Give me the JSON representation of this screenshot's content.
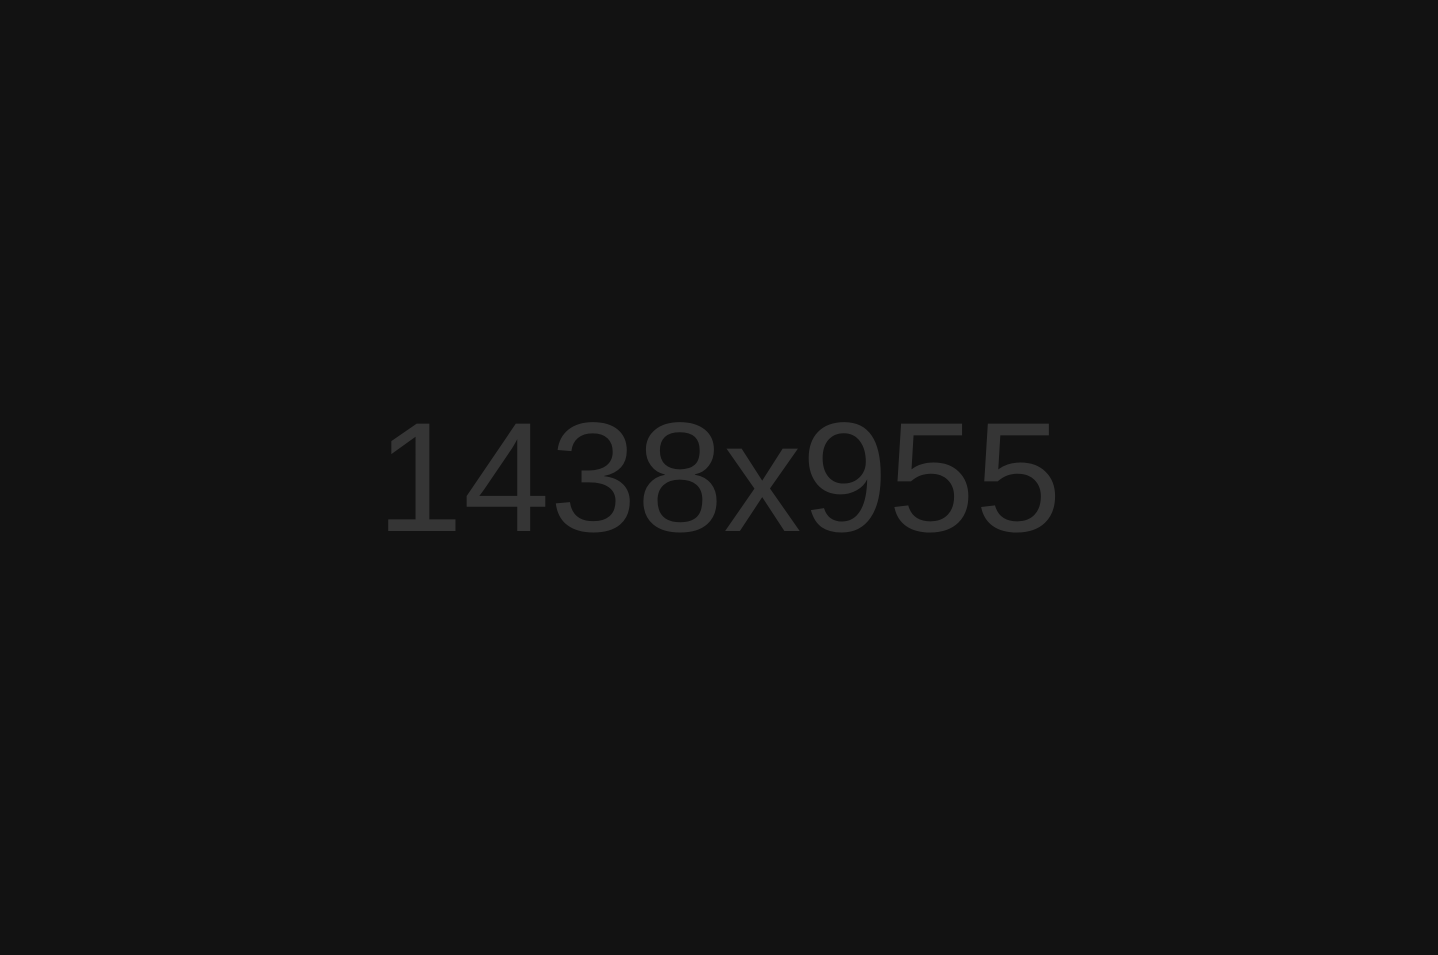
{
  "placeholder": {
    "label": "1438x955",
    "colors": {
      "background": "#121212",
      "text": "#353535"
    }
  }
}
